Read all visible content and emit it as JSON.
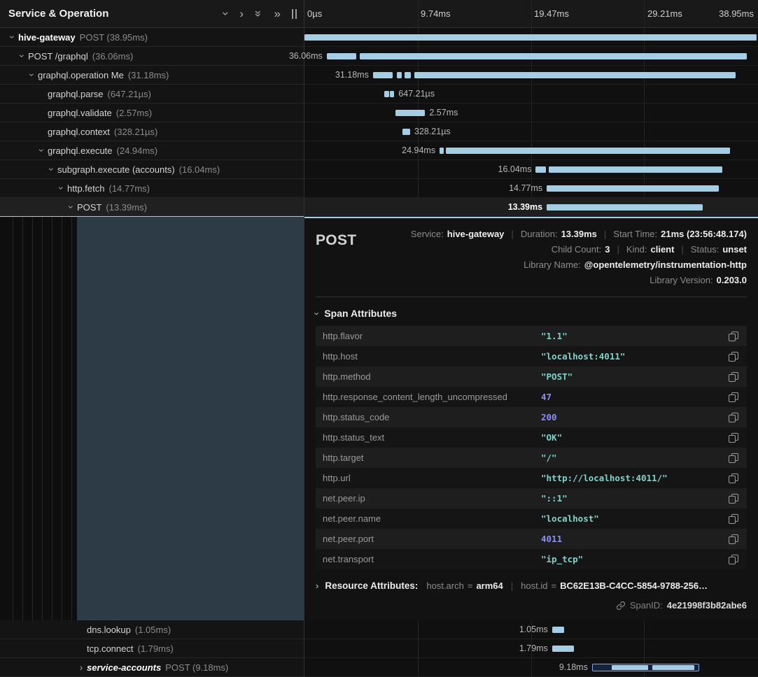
{
  "app": {
    "left_header_title": "Service & Operation",
    "time_ticks": [
      "0µs",
      "9.74ms",
      "19.47ms",
      "29.21ms",
      "38.95ms"
    ]
  },
  "icons": {
    "chevron": "›",
    "double_chevron": "»"
  },
  "bar_color": "#a5cee4",
  "spans": [
    {
      "name": "hive-gateway",
      "meta": "POST (38.95ms)",
      "depth": 0,
      "chevron": "expanded",
      "emph": "bold",
      "selected": false,
      "bar_label": "",
      "label_side": "before",
      "bar": {
        "kind": "solid",
        "segments": [
          [
            0,
            99.7
          ]
        ]
      }
    },
    {
      "name": "POST /graphql",
      "meta": "(36.06ms)",
      "depth": 1,
      "chevron": "expanded",
      "emph": "",
      "selected": false,
      "bar_label": "36.06ms",
      "label_side": "before",
      "bar": {
        "kind": "solid",
        "segments": [
          [
            4.9,
            6.5
          ],
          [
            12.2,
            85.3
          ]
        ]
      }
    },
    {
      "name": "graphql.operation Me",
      "meta": "(31.18ms)",
      "depth": 2,
      "chevron": "expanded",
      "emph": "",
      "selected": false,
      "bar_label": "31.18ms",
      "label_side": "before",
      "bar": {
        "kind": "solid",
        "segments": [
          [
            15.1,
            4.3
          ],
          [
            20.3,
            1.2
          ],
          [
            22.0,
            1.5
          ],
          [
            24.2,
            70.8
          ]
        ]
      }
    },
    {
      "name": "graphql.parse",
      "meta": "(647.21µs)",
      "depth": 3,
      "chevron": "none",
      "emph": "",
      "selected": false,
      "bar_label": "647.21µs",
      "label_side": "after",
      "bar": {
        "kind": "solid",
        "segments": [
          [
            17.6,
            1.0
          ],
          [
            18.9,
            0.9
          ]
        ]
      }
    },
    {
      "name": "graphql.validate",
      "meta": "(2.57ms)",
      "depth": 3,
      "chevron": "none",
      "emph": "",
      "selected": false,
      "bar_label": "2.57ms",
      "label_side": "after",
      "bar": {
        "kind": "solid",
        "segments": [
          [
            20.0,
            6.6
          ]
        ]
      }
    },
    {
      "name": "graphql.context",
      "meta": "(328.21µs)",
      "depth": 3,
      "chevron": "none",
      "emph": "",
      "selected": false,
      "bar_label": "328.21µs",
      "label_side": "after",
      "bar": {
        "kind": "solid",
        "segments": [
          [
            21.6,
            1.7
          ]
        ]
      }
    },
    {
      "name": "graphql.execute",
      "meta": "(24.94ms)",
      "depth": 3,
      "chevron": "expanded",
      "emph": "",
      "selected": false,
      "bar_label": "24.94ms",
      "label_side": "before",
      "bar": {
        "kind": "solid",
        "segments": [
          [
            29.8,
            0.9
          ],
          [
            31.1,
            62.8
          ]
        ]
      }
    },
    {
      "name": "subgraph.execute (accounts)",
      "meta": "(16.04ms)",
      "depth": 4,
      "chevron": "expanded",
      "emph": "",
      "selected": false,
      "bar_label": "16.04ms",
      "label_side": "before",
      "bar": {
        "kind": "solid",
        "segments": [
          [
            51.0,
            2.2
          ],
          [
            53.9,
            38.2
          ]
        ]
      }
    },
    {
      "name": "http.fetch",
      "meta": "(14.77ms)",
      "depth": 5,
      "chevron": "expanded",
      "emph": "",
      "selected": false,
      "bar_label": "14.77ms",
      "label_side": "before",
      "bar": {
        "kind": "solid",
        "segments": [
          [
            53.4,
            37.9
          ]
        ]
      }
    },
    {
      "name": "POST",
      "meta": "(13.39ms)",
      "depth": 6,
      "chevron": "expanded",
      "emph": "",
      "selected": true,
      "bar_label": "13.39ms",
      "label_side": "before",
      "bar": {
        "kind": "solid",
        "segments": [
          [
            53.4,
            34.4
          ]
        ]
      }
    },
    {
      "name": "dns.lookup",
      "meta": "(1.05ms)",
      "depth": 7,
      "chevron": "none",
      "emph": "",
      "selected": false,
      "bar_label": "1.05ms",
      "label_side": "before",
      "bar": {
        "kind": "solid",
        "segments": [
          [
            54.6,
            2.6
          ]
        ]
      }
    },
    {
      "name": "tcp.connect",
      "meta": "(1.79ms)",
      "depth": 7,
      "chevron": "none",
      "emph": "",
      "selected": false,
      "bar_label": "1.79ms",
      "label_side": "before",
      "bar": {
        "kind": "solid",
        "segments": [
          [
            54.6,
            4.8
          ]
        ]
      }
    },
    {
      "name": "service-accounts",
      "meta": "POST (9.18ms)",
      "depth": 7,
      "chevron": "collapsed",
      "emph": "bold-italic",
      "selected": false,
      "bar_label": "9.18ms",
      "label_side": "before",
      "bar": {
        "kind": "outlined",
        "segments": [
          [
            63.4,
            23.7
          ]
        ],
        "inner": [
          [
            18,
            34
          ],
          [
            56,
            40
          ]
        ]
      }
    }
  ],
  "detail": {
    "title": "POST",
    "meta_rows": [
      [
        {
          "label": "Service:",
          "value": "hive-gateway"
        },
        {
          "label": "Duration:",
          "value": "13.39ms"
        },
        {
          "label": "Start Time:",
          "value": "21ms (23:56:48.174)"
        }
      ],
      [
        {
          "label": "Child Count:",
          "value": "3"
        },
        {
          "label": "Kind:",
          "value": "client"
        },
        {
          "label": "Status:",
          "value": "unset"
        }
      ],
      [
        {
          "label": "Library Name:",
          "value": "@opentelemetry/instrumentation-http"
        }
      ],
      [
        {
          "label": "Library Version:",
          "value": "0.203.0"
        }
      ]
    ],
    "span_attributes_title": "Span Attributes",
    "attributes": [
      {
        "key": "http.flavor",
        "display": "\"1.1\"",
        "kind": "string"
      },
      {
        "key": "http.host",
        "display": "\"localhost:4011\"",
        "kind": "string"
      },
      {
        "key": "http.method",
        "display": "\"POST\"",
        "kind": "string"
      },
      {
        "key": "http.response_content_length_uncompressed",
        "display": "47",
        "kind": "number"
      },
      {
        "key": "http.status_code",
        "display": "200",
        "kind": "number"
      },
      {
        "key": "http.status_text",
        "display": "\"OK\"",
        "kind": "string"
      },
      {
        "key": "http.target",
        "display": "\"/\"",
        "kind": "string"
      },
      {
        "key": "http.url",
        "display": "\"http://localhost:4011/\"",
        "kind": "string"
      },
      {
        "key": "net.peer.ip",
        "display": "\"::1\"",
        "kind": "string"
      },
      {
        "key": "net.peer.name",
        "display": "\"localhost\"",
        "kind": "string"
      },
      {
        "key": "net.peer.port",
        "display": "4011",
        "kind": "number"
      },
      {
        "key": "net.transport",
        "display": "\"ip_tcp\"",
        "kind": "string"
      }
    ],
    "resource": {
      "title": "Resource Attributes:",
      "items": [
        {
          "key": "host.arch",
          "eq": "=",
          "value": "arm64"
        },
        {
          "key": "host.id",
          "eq": "=",
          "value": "BC62E13B-C4CC-5854-9788-256…"
        }
      ]
    },
    "span_id_label": "SpanID:",
    "span_id": "4e21998f3b82abe6"
  }
}
